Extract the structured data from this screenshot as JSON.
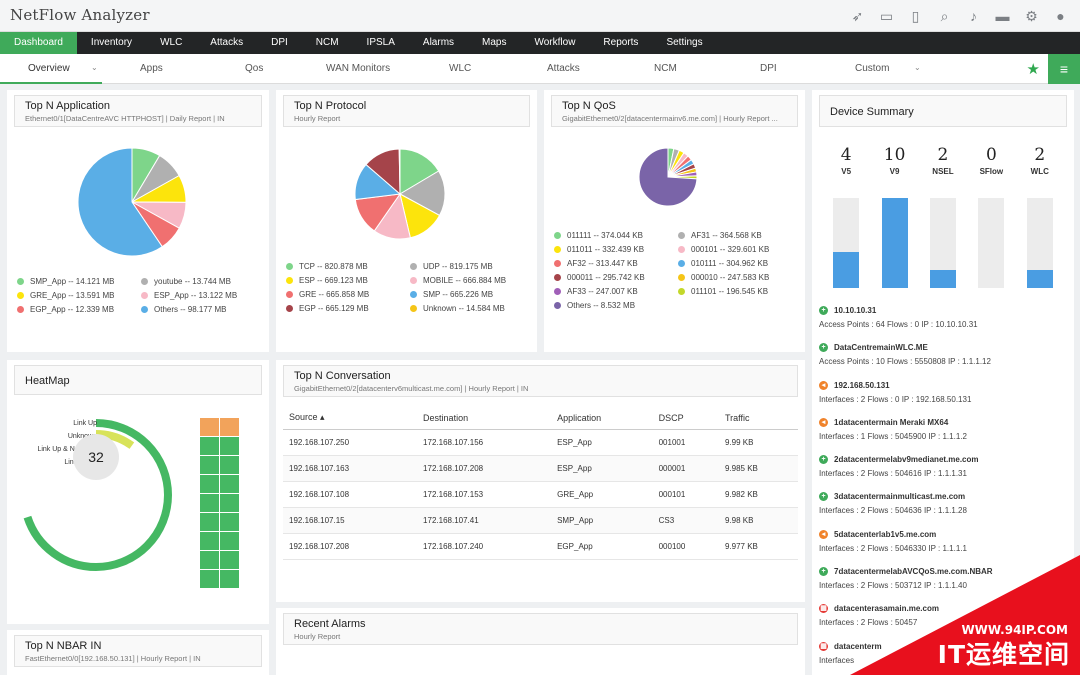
{
  "app": {
    "title": "NetFlow Analyzer"
  },
  "toolbar_icons": [
    "rocket-icon",
    "monitor-icon",
    "mobile-icon",
    "search-icon",
    "bell-icon",
    "battery-icon",
    "gear-icon",
    "user-avatar-icon"
  ],
  "main_nav": [
    "Dashboard",
    "Inventory",
    "WLC",
    "Attacks",
    "DPI",
    "NCM",
    "IPSLA",
    "Alarms",
    "Maps",
    "Workflow",
    "Reports",
    "Settings"
  ],
  "sub_nav": [
    "Overview",
    "Apps",
    "Qos",
    "WAN Monitors",
    "WLC",
    "Attacks",
    "NCM",
    "DPI",
    "Custom"
  ],
  "top_app": {
    "title": "Top N Application",
    "subtitle": "Ethernet0/1[DataCentreAVC HTTPHOST] | Daily Report | IN",
    "legend": [
      {
        "label": "SMP_App -- 14.121 MB",
        "value": 14.121,
        "color": "#7ed58a"
      },
      {
        "label": "youtube -- 13.744 MB",
        "value": 13.744,
        "color": "#b0b0b0"
      },
      {
        "label": "GRE_App -- 13.591 MB",
        "value": 13.591,
        "color": "#fce40c"
      },
      {
        "label": "ESP_App -- 13.122 MB",
        "value": 13.122,
        "color": "#f7b9c6"
      },
      {
        "label": "EGP_App -- 12.339 MB",
        "value": 12.339,
        "color": "#f07070"
      },
      {
        "label": "Others -- 98.177 MB",
        "value": 98.177,
        "color": "#5aaee6"
      }
    ]
  },
  "top_protocol": {
    "title": "Top N Protocol",
    "subtitle": "Hourly Report",
    "legend": [
      {
        "label": "TCP -- 820.878 MB",
        "value": 820.878,
        "color": "#7ed58a"
      },
      {
        "label": "UDP -- 819.175 MB",
        "value": 819.175,
        "color": "#b0b0b0"
      },
      {
        "label": "ESP -- 669.123 MB",
        "value": 669.123,
        "color": "#fce40c"
      },
      {
        "label": "MOBILE -- 666.884 MB",
        "value": 666.884,
        "color": "#f7b9c6"
      },
      {
        "label": "GRE -- 665.858 MB",
        "value": 665.858,
        "color": "#f07070"
      },
      {
        "label": "SMP -- 665.226 MB",
        "value": 665.226,
        "color": "#5aaee6"
      },
      {
        "label": "EGP -- 665.129 MB",
        "value": 665.129,
        "color": "#a5444a"
      },
      {
        "label": "Unknown -- 14.584 MB",
        "value": 14.584,
        "color": "#f5c518"
      }
    ]
  },
  "top_qos": {
    "title": "Top N QoS",
    "subtitle": "GigabitEthernet0/2[datacentermainv6.me.com] | Hourly Report ...",
    "legend": [
      {
        "label": "011111 -- 374.044 KB",
        "value": 374.044,
        "color": "#7ed58a"
      },
      {
        "label": "AF31 -- 364.568 KB",
        "value": 364.568,
        "color": "#b0b0b0"
      },
      {
        "label": "011011 -- 332.439 KB",
        "value": 332.439,
        "color": "#fce40c"
      },
      {
        "label": "000101 -- 329.601 KB",
        "value": 329.601,
        "color": "#f7b9c6"
      },
      {
        "label": "AF32 -- 313.447 KB",
        "value": 313.447,
        "color": "#f07070"
      },
      {
        "label": "010111 -- 304.962 KB",
        "value": 304.962,
        "color": "#5aaee6"
      },
      {
        "label": "000011 -- 295.742 KB",
        "value": 295.742,
        "color": "#a5444a"
      },
      {
        "label": "000010 -- 247.583 KB",
        "value": 247.583,
        "color": "#f5c518"
      },
      {
        "label": "AF33 -- 247.007 KB",
        "value": 247.007,
        "color": "#a05fb8"
      },
      {
        "label": "011101 -- 196.545 KB",
        "value": 196.545,
        "color": "#c3d82a"
      },
      {
        "label": "Others -- 8.532 MB",
        "value": 8532,
        "color": "#7a64a8"
      }
    ]
  },
  "device_summary": {
    "title": "Device Summary",
    "counts": [
      {
        "n": "4",
        "label": "V5",
        "fill": 0.4
      },
      {
        "n": "10",
        "label": "V9",
        "fill": 1.0
      },
      {
        "n": "2",
        "label": "NSEL",
        "fill": 0.2
      },
      {
        "n": "0",
        "label": "SFlow",
        "fill": 0.0
      },
      {
        "n": "2",
        "label": "WLC",
        "fill": 0.2
      }
    ],
    "devices": [
      {
        "name": "10.10.10.31",
        "meta": "Access Points : 64    Flows : 0    IP : 10.10.10.31",
        "color": "#3faa5a"
      },
      {
        "name": "DataCentremainWLC.ME",
        "meta": "Access Points : 10    Flows : 5550808    IP : 1.1.1.12",
        "color": "#3faa5a"
      },
      {
        "name": "192.168.50.131",
        "meta": "Interfaces : 2    Flows : 0    IP : 192.168.50.131",
        "color": "#f0832b"
      },
      {
        "name": "1datacentermain Meraki MX64",
        "meta": "Interfaces : 1    Flows : 5045900    IP : 1.1.1.2",
        "color": "#f0832b"
      },
      {
        "name": "2datacentermelabv9medianet.me.com",
        "meta": "Interfaces : 2    Flows : 504616    IP : 1.1.1.31",
        "color": "#3faa5a"
      },
      {
        "name": "3datacentermainmulticast.me.com",
        "meta": "Interfaces : 2    Flows : 504636    IP : 1.1.1.28",
        "color": "#3faa5a"
      },
      {
        "name": "5datacenterlab1v5.me.com",
        "meta": "Interfaces : 2    Flows : 5046330    IP : 1.1.1.1",
        "color": "#f0832b"
      },
      {
        "name": "7datacentermelabAVCQoS.me.com.NBAR",
        "meta": "Interfaces : 2    Flows : 503712    IP : 1.1.1.40",
        "color": "#3faa5a"
      },
      {
        "name": "datacenterasamain.me.com",
        "meta": "Interfaces : 2    Flows : 50457",
        "color": "#e53935"
      },
      {
        "name": "datacenterm",
        "meta": "Interfaces",
        "color": "#e53935"
      }
    ]
  },
  "heatmap": {
    "title": "HeatMap",
    "labels": [
      "Link Up",
      "Unknown",
      "Link Up & NoFlows",
      "Link Down"
    ],
    "center": "32",
    "ring_colors": [
      "#45b863",
      "#d8e35a",
      "#f2a35b",
      "#e0e0e0"
    ],
    "ring_fractions": [
      0.7,
      0.1,
      0.05,
      0.15
    ],
    "grid_colors": [
      "#f2a35b",
      "#f2a35b",
      "#45b863",
      "#45b863",
      "#45b863",
      "#45b863",
      "#45b863",
      "#45b863",
      "#45b863",
      "#45b863",
      "#45b863",
      "#45b863",
      "#45b863",
      "#45b863",
      "#45b863",
      "#45b863",
      "#45b863",
      "#45b863"
    ]
  },
  "conversation": {
    "title": "Top N Conversation",
    "subtitle": "GigabitEthernet0/2[datacenterv6multicast.me.com] | Hourly Report | IN",
    "columns": [
      "Source",
      "Destination",
      "Application",
      "DSCP",
      "Traffic"
    ],
    "rows": [
      [
        "192.168.107.250",
        "172.168.107.156",
        "ESP_App",
        "001001",
        "9.99 KB"
      ],
      [
        "192.168.107.163",
        "172.168.107.208",
        "ESP_App",
        "000001",
        "9.985 KB"
      ],
      [
        "192.168.107.108",
        "172.168.107.153",
        "GRE_App",
        "000101",
        "9.982 KB"
      ],
      [
        "192.168.107.15",
        "172.168.107.41",
        "SMP_App",
        "CS3",
        "9.98 KB"
      ],
      [
        "192.168.107.208",
        "172.168.107.240",
        "EGP_App",
        "000100",
        "9.977 KB"
      ]
    ]
  },
  "recent_alarms": {
    "title": "Recent Alarms",
    "subtitle": "Hourly Report"
  },
  "top_nbar": {
    "title": "Top N NBAR IN",
    "subtitle": "FastEthernet0/0[192.168.50.131] | Hourly Report | IN"
  },
  "watermark": {
    "url": "WWW.94IP.COM",
    "name": "IT运维空间"
  }
}
